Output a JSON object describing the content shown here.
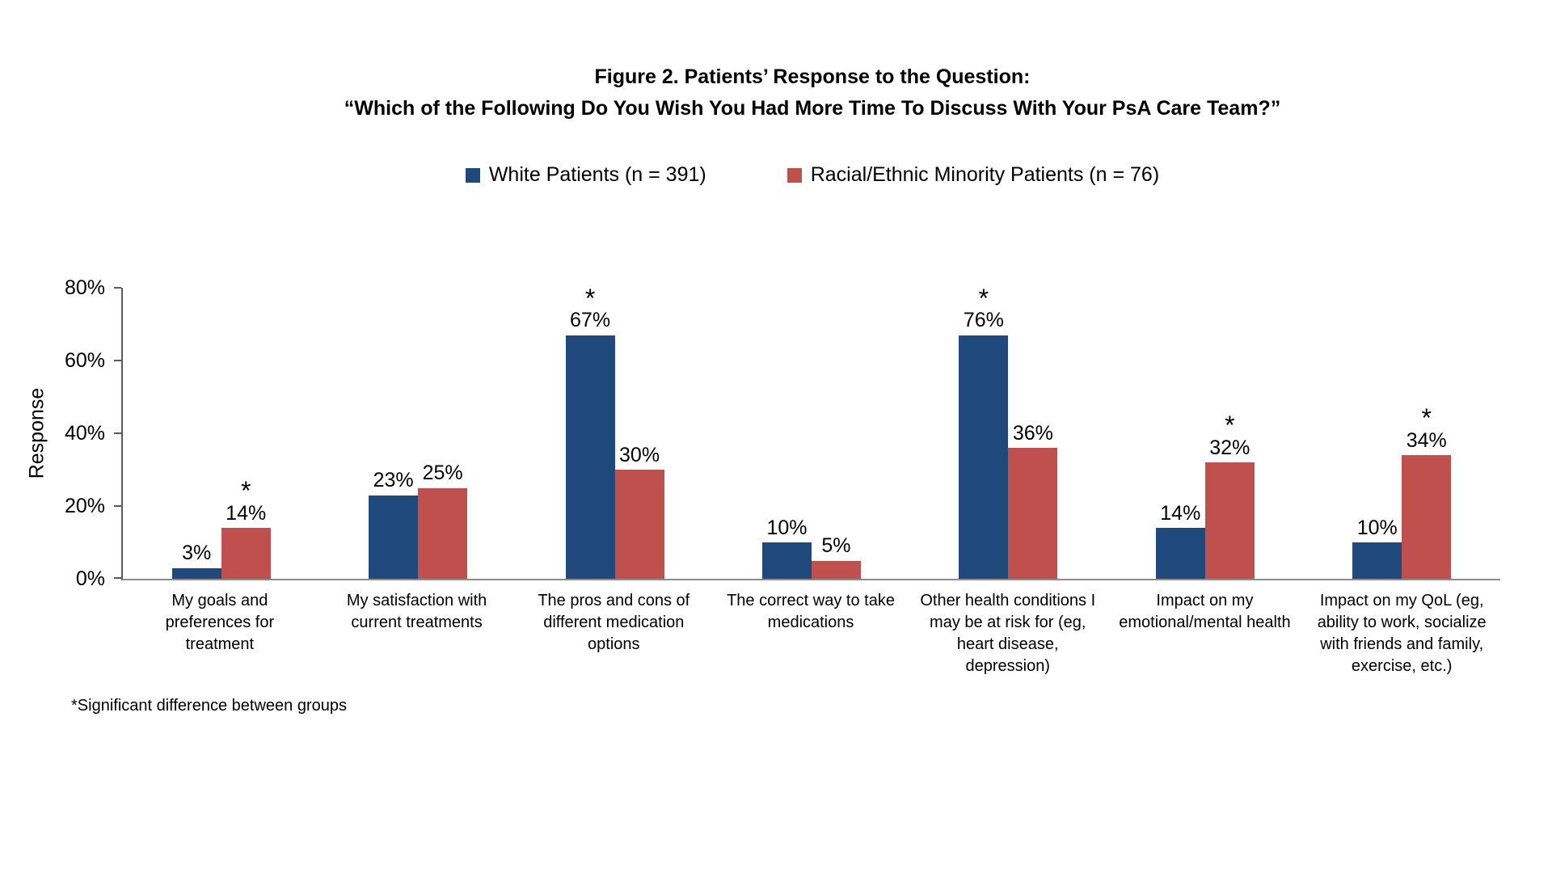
{
  "header": {
    "title_line1": "Figure 2. Patients’ Response to the Question:",
    "title_line2": "“Which of the Following Do You Wish You Had More Time To Discuss With Your PsA Care Team?”"
  },
  "footnote": "*Significant difference between groups",
  "chart_data": {
    "type": "bar",
    "title": "Figure 2. Patients’ Response to the Question: “Which of the Following Do You Wish You Had More Time To Discuss With Your PsA Care Team?”",
    "xlabel": "",
    "ylabel": "Response",
    "ylim": [
      0,
      80
    ],
    "yticks": [
      0,
      20,
      40,
      60,
      80
    ],
    "ytick_labels": [
      "0%",
      "20%",
      "40%",
      "60%",
      "80%"
    ],
    "grid": false,
    "legend_position": "top-center",
    "value_label_format": "{v}%",
    "significance_marker": "*",
    "categories": [
      "My goals and preferences for treatment",
      "My satisfaction with current treatments",
      "The pros and cons of different medication options",
      "The correct way to take medications",
      "Other health conditions I may be at risk for (eg, heart disease, depression)",
      "Impact on my emotional/mental health",
      "Impact on my QoL (eg, ability to work, socialize with friends and family, exercise, etc.)"
    ],
    "series": [
      {
        "name": "White Patients (n = 391)",
        "color": "#1F497D",
        "values": [
          3,
          23,
          67,
          10,
          76,
          14,
          10
        ],
        "significant": [
          false,
          false,
          true,
          false,
          true,
          false,
          false
        ]
      },
      {
        "name": "Racial/Ethnic Minority Patients (n = 76)",
        "color": "#C0504D",
        "values": [
          14,
          25,
          30,
          5,
          36,
          32,
          34
        ],
        "significant": [
          true,
          false,
          false,
          false,
          false,
          true,
          true
        ]
      }
    ]
  }
}
